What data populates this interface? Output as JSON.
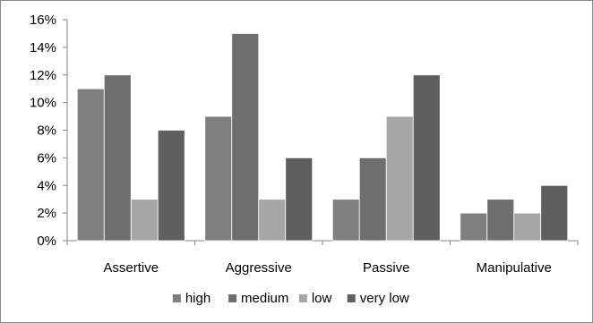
{
  "chart_data": {
    "type": "bar",
    "title": "",
    "xlabel": "",
    "ylabel": "",
    "categories": [
      "Assertive",
      "Aggressive",
      "Passive",
      "Manipulative"
    ],
    "series": [
      {
        "name": "high",
        "values": [
          11,
          9,
          3,
          2
        ],
        "color": "#7f7f7f"
      },
      {
        "name": "medium",
        "values": [
          12,
          15,
          6,
          3
        ],
        "color": "#6e6e6e"
      },
      {
        "name": "low",
        "values": [
          3,
          3,
          9,
          2
        ],
        "color": "#a6a6a6"
      },
      {
        "name": "very low",
        "values": [
          8,
          6,
          12,
          4
        ],
        "color": "#5f5f5f"
      }
    ],
    "ylim": [
      0,
      16
    ],
    "yticks": [
      "0%",
      "2%",
      "4%",
      "6%",
      "8%",
      "10%",
      "12%",
      "14%",
      "16%"
    ],
    "value_unit": "%",
    "grid": false,
    "legend_position": "bottom"
  }
}
